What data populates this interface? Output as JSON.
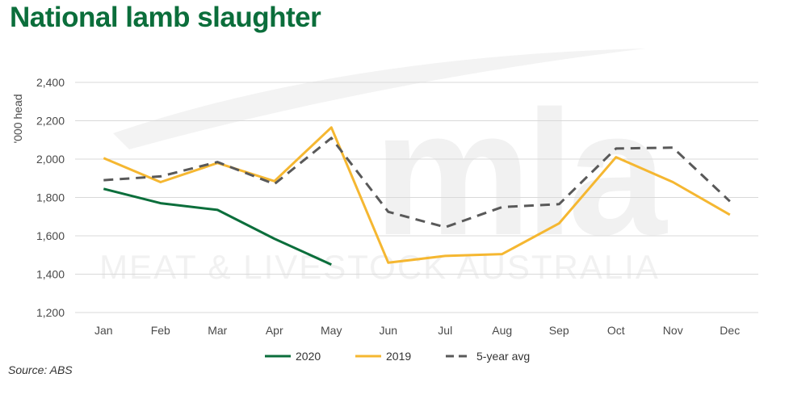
{
  "title": "National lamb slaughter",
  "source": "Source: ABS",
  "watermark": {
    "logo": "mla",
    "tagline": "MEAT & LIVESTOCK AUSTRALIA"
  },
  "colors": {
    "series_2020": "#0b6e3b",
    "series_2019": "#f5b731",
    "series_avg": "#595959",
    "grid": "#d9d9d9"
  },
  "chart_data": {
    "type": "line",
    "ylabel": "'000 head",
    "xlabel": "",
    "ylim": [
      1200,
      2400
    ],
    "yticks": [
      1200,
      1400,
      1600,
      1800,
      2000,
      2200,
      2400
    ],
    "ytick_labels": [
      "1,200",
      "1,400",
      "1,600",
      "1,800",
      "2,000",
      "2,200",
      "2,400"
    ],
    "grid": true,
    "legend_position": "bottom-center",
    "categories": [
      "Jan",
      "Feb",
      "Mar",
      "Apr",
      "May",
      "Jun",
      "Jul",
      "Aug",
      "Sep",
      "Oct",
      "Nov",
      "Dec"
    ],
    "series": [
      {
        "name": "2020",
        "style": "solid",
        "color": "#0b6e3b",
        "values": [
          1845,
          1770,
          1735,
          1585,
          1450,
          null,
          null,
          null,
          null,
          null,
          null,
          null
        ]
      },
      {
        "name": "2019",
        "style": "solid",
        "color": "#f5b731",
        "values": [
          2005,
          1880,
          1980,
          1885,
          2165,
          1460,
          1495,
          1505,
          1665,
          2010,
          1880,
          1710
        ]
      },
      {
        "name": "5-year avg",
        "style": "dashed",
        "color": "#595959",
        "values": [
          1890,
          1910,
          1985,
          1870,
          2110,
          1725,
          1645,
          1750,
          1765,
          2055,
          2060,
          1780
        ]
      }
    ]
  }
}
